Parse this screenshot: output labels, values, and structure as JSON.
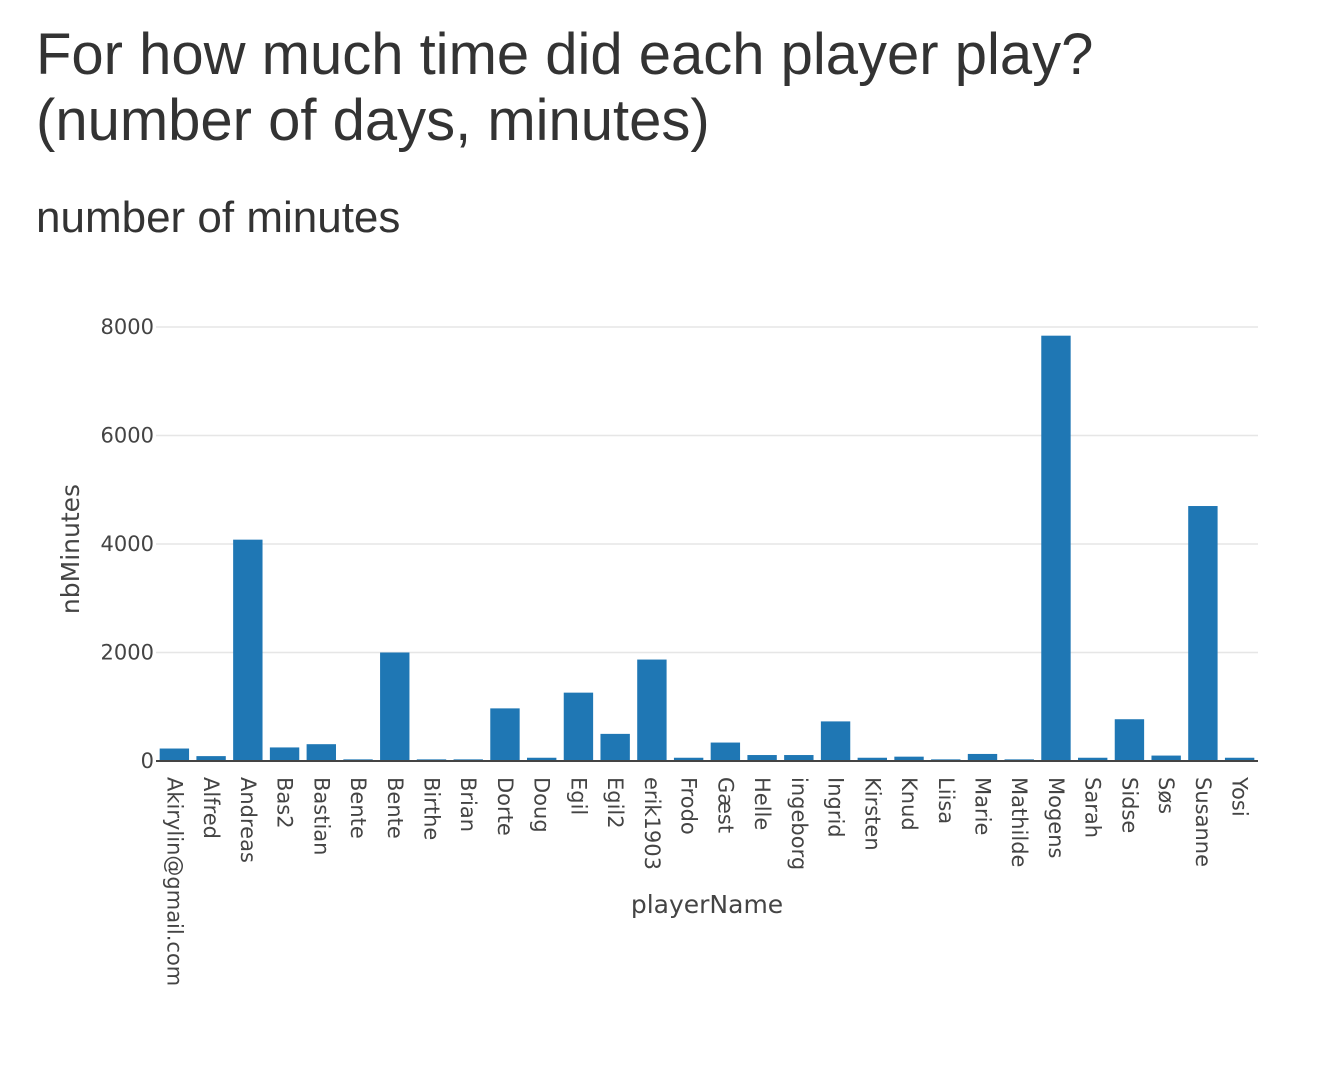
{
  "header": {
    "title_line1": "For how much time did each player play?",
    "title_line2": "(number of days, minutes)",
    "subtitle": "number of minutes"
  },
  "colors": {
    "bar": "#1f77b4",
    "grid": "#e6e6e6",
    "axis_line": "#444444"
  },
  "chart_data": {
    "type": "bar",
    "xlabel": "playerName",
    "ylabel": "nbMinutes",
    "ylim": [
      0,
      8000
    ],
    "yticks": [
      0,
      2000,
      4000,
      6000,
      8000
    ],
    "grid": true,
    "categories": [
      "Akirylin@gmail.com",
      "Alfred",
      "Andreas",
      "Bas2",
      "Bastian",
      "Bente",
      "Bente",
      "Birthe",
      "Brian",
      "Dorte",
      "Doug",
      "Egil",
      "Egil2",
      "erik1903",
      "Frodo",
      "Gæst",
      "Helle",
      "ingeborg",
      "Ingrid",
      "Kirsten",
      "Knud",
      "Liisa",
      "Marie",
      "Mathilde",
      "Mogens",
      "Sarah",
      "Sidse",
      "Søs",
      "Susanne",
      "Yosi"
    ],
    "values": [
      230,
      90,
      4080,
      250,
      310,
      30,
      2000,
      30,
      30,
      970,
      60,
      1260,
      500,
      1870,
      60,
      340,
      110,
      110,
      730,
      60,
      80,
      30,
      130,
      30,
      7840,
      60,
      770,
      100,
      4700,
      60
    ]
  }
}
